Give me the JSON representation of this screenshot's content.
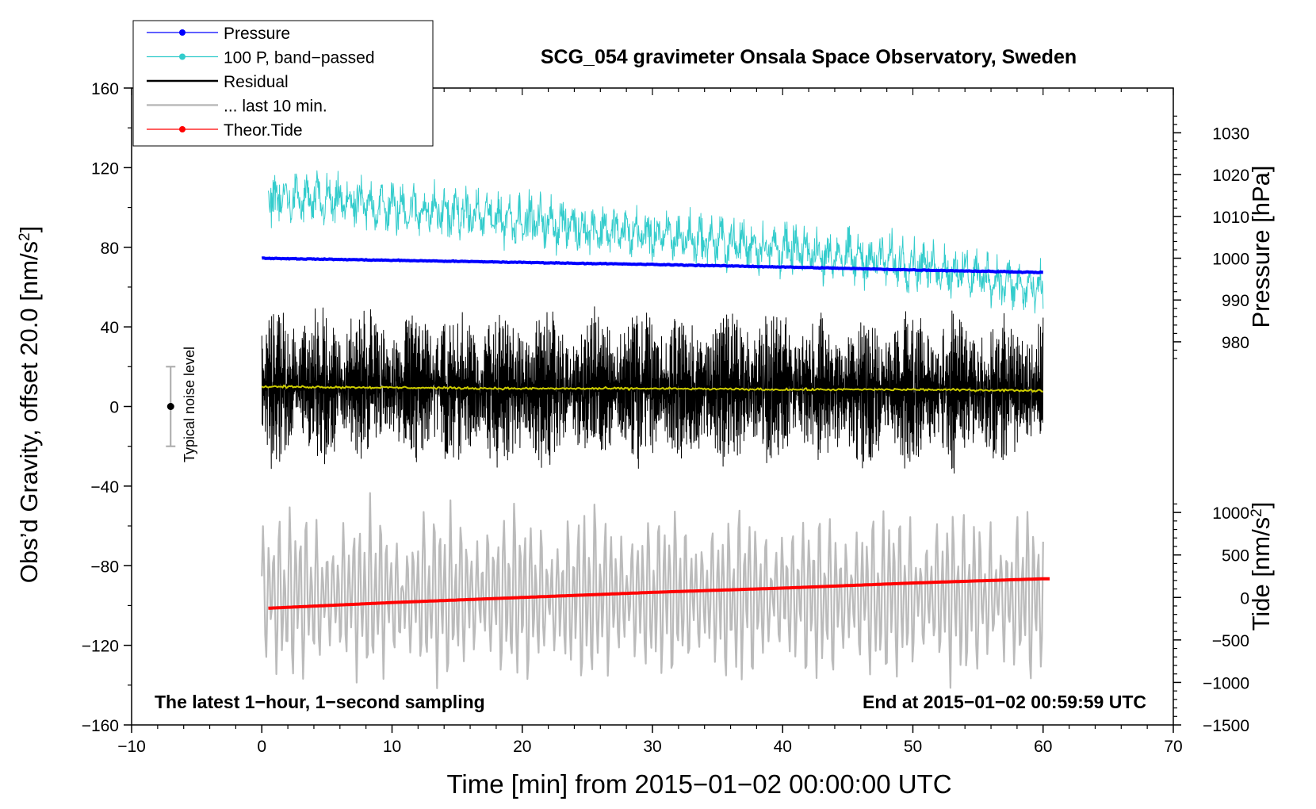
{
  "chart_data": {
    "type": "line",
    "title": "SCG_054 gravimeter Onsala Space Observatory, Sweden",
    "xlabel": "Time [min] from 2015−01−02 00:00:00 UTC",
    "ylabel": "Obs’d Gravity, offset 20.0 [nm/s",
    "ylabel_sup": "2",
    "ylabel_end": "]",
    "xlim": [
      -10,
      70
    ],
    "ylim": [
      -160,
      160
    ],
    "x_ticks": [
      "−10",
      "0",
      "10",
      "20",
      "30",
      "40",
      "50",
      "60",
      "70"
    ],
    "y_ticks": [
      "−160",
      "−120",
      "−80",
      "−40",
      "0",
      "40",
      "80",
      "120",
      "160"
    ],
    "pressure_axis": {
      "label": "Pressure [hPa]",
      "ticks": [
        "980",
        "990",
        "1000",
        "1010",
        "1020",
        "1030"
      ],
      "tick_values": [
        980,
        990,
        1000,
        1010,
        1020,
        1030
      ],
      "anchor": {
        "value": 1000,
        "left_axis_value": 74.5
      },
      "scale": 2.1
    },
    "tide_axis": {
      "label": "Tide [nm/s",
      "label_sup": "2",
      "label_end": "]",
      "ticks": [
        "−1500",
        "−1000",
        "−500",
        "0",
        "500",
        "1000"
      ],
      "tick_values": [
        -1500,
        -1000,
        -500,
        0,
        500,
        1000
      ],
      "anchor": {
        "value": -1500,
        "left_axis_value": -160
      },
      "scale": 0.0427
    },
    "legend": {
      "placement": "top-left",
      "entries": [
        {
          "label": "Pressure",
          "color": "#0000ff",
          "marker": true
        },
        {
          "label": "100 P, band−passed",
          "color": "#33cccc",
          "marker": true
        },
        {
          "label": "Residual",
          "color": "#000000",
          "marker": false
        },
        {
          "label": "... last 10 min.",
          "color": "#bbbbbb",
          "marker": false
        },
        {
          "label": "Theor.Tide",
          "color": "#ff0000",
          "marker": true
        }
      ]
    },
    "series": [
      {
        "name": "Pressure",
        "axis": "pressure",
        "color": "#0000ff",
        "x": [
          0,
          10,
          20,
          30,
          40,
          50,
          60
        ],
        "values": [
          1000.0,
          999.5,
          999.0,
          998.5,
          997.9,
          997.2,
          996.6
        ]
      },
      {
        "name": "100 P, band−passed",
        "axis": "left",
        "color": "#33cccc",
        "x": [
          0,
          5,
          10,
          15,
          20,
          25,
          30,
          35,
          40,
          45,
          50,
          55,
          60
        ],
        "values": [
          105,
          103,
          100,
          97,
          94,
          90,
          86,
          83,
          79,
          75,
          72,
          66,
          57
        ]
      },
      {
        "name": "Residual",
        "axis": "left",
        "color": "#000000",
        "x": [
          0,
          10,
          20,
          30,
          40,
          50,
          60
        ],
        "values": [
          10,
          10,
          9,
          9,
          9,
          8,
          8
        ]
      },
      {
        "name": "Residual smoothed",
        "axis": "left",
        "color": "#cccc00",
        "x": [
          0,
          10,
          20,
          30,
          40,
          50,
          60
        ],
        "values": [
          10,
          9.5,
          9,
          9,
          8.5,
          8.5,
          8
        ]
      },
      {
        "name": "... last 10 min.",
        "axis": "left",
        "color": "#bbbbbb",
        "x": [
          0,
          10,
          20,
          30,
          40,
          50,
          60
        ],
        "values": [
          -95,
          -95,
          -95,
          -95,
          -95,
          -95,
          -95
        ]
      },
      {
        "name": "Theor.Tide",
        "axis": "tide",
        "color": "#ff0000",
        "x": [
          0,
          10,
          20,
          30,
          40,
          50,
          60
        ],
        "values": [
          -130,
          -60,
          0,
          60,
          110,
          170,
          220
        ]
      }
    ],
    "noise_bar": {
      "label": "Typical noise level",
      "x": -7,
      "center": 0,
      "low": -20,
      "high": 20
    },
    "annotations": {
      "bottom_left": "The latest 1−hour, 1−second sampling",
      "bottom_right": "End at 2015−01−02 00:59:59 UTC"
    }
  }
}
